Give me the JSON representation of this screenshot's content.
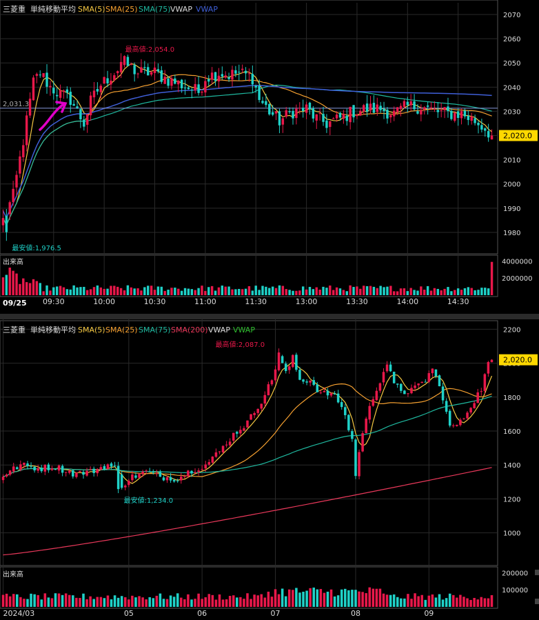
{
  "colors": {
    "up": "#e8184a",
    "down": "#1fd1c8",
    "sma5": "#f5c842",
    "sma25": "#f5a030",
    "sma75": "#1fb9a0",
    "sma200": "#e8385a",
    "vwap_intraday": "#3f5fd8",
    "vwap_daily": "#30c030",
    "grid": "#2a2a2a",
    "axis": "#888888",
    "text": "#dddddd",
    "price_tag": "#ffd800"
  },
  "chart_data": [
    {
      "type": "candlestick",
      "name": "intraday",
      "legend": {
        "symbol": "三菱重",
        "mode": "単純移動平均",
        "sma5": "SMA(5)",
        "sma25": "SMA(25)",
        "sma75": "SMA(75)",
        "vwap": "VWAP",
        "vwap2": "VWAP"
      },
      "x_ticks": [
        {
          "i": 15,
          "label": "09:30"
        },
        {
          "i": 30,
          "label": "10:00"
        },
        {
          "i": 45,
          "label": "10:30"
        },
        {
          "i": 60,
          "label": "11:00"
        },
        {
          "i": 75,
          "label": "11:30"
        },
        {
          "i": 90,
          "label": "13:00"
        },
        {
          "i": 105,
          "label": "13:30"
        },
        {
          "i": 120,
          "label": "14:00"
        },
        {
          "i": 135,
          "label": "14:30"
        }
      ],
      "date_label": "09/25",
      "y_ticks": [
        1980,
        1990,
        2000,
        2010,
        2020,
        2030,
        2040,
        2050,
        2060,
        2070
      ],
      "ylim": [
        1974,
        2072
      ],
      "n_bars": 146,
      "last_price": "2,020.0",
      "last_value": 2020,
      "reference_line": 2031.3,
      "reference_label": "2,031.3",
      "high_label": "最高値:2,054.0",
      "high": {
        "i": 35,
        "value": 2054
      },
      "low_label": "最安値:1,976.5",
      "low": {
        "i": 1,
        "value": 1976.5
      },
      "anchor_prices": [
        [
          0,
          1985
        ],
        [
          3,
          1995
        ],
        [
          6,
          2018
        ],
        [
          9,
          2042
        ],
        [
          11,
          2046
        ],
        [
          14,
          2040
        ],
        [
          17,
          2037
        ],
        [
          20,
          2035
        ],
        [
          22,
          2030
        ],
        [
          24,
          2025
        ],
        [
          26,
          2034
        ],
        [
          29,
          2041
        ],
        [
          33,
          2046
        ],
        [
          36,
          2050
        ],
        [
          40,
          2046
        ],
        [
          45,
          2046
        ],
        [
          49,
          2043
        ],
        [
          53,
          2041
        ],
        [
          58,
          2038
        ],
        [
          60,
          2044
        ],
        [
          64,
          2046
        ],
        [
          67,
          2045
        ],
        [
          70,
          2046
        ],
        [
          74,
          2044
        ],
        [
          76,
          2035
        ],
        [
          79,
          2030
        ],
        [
          82,
          2026
        ],
        [
          86,
          2030
        ],
        [
          90,
          2031
        ],
        [
          93,
          2027
        ],
        [
          96,
          2025
        ],
        [
          100,
          2027
        ],
        [
          104,
          2030
        ],
        [
          108,
          2031
        ],
        [
          112,
          2031
        ],
        [
          116,
          2029
        ],
        [
          120,
          2032
        ],
        [
          124,
          2032
        ],
        [
          128,
          2030
        ],
        [
          132,
          2029
        ],
        [
          136,
          2029
        ],
        [
          140,
          2026
        ],
        [
          143,
          2023
        ],
        [
          145,
          2020
        ]
      ],
      "volume": {
        "label": "出来高",
        "ticks": [
          {
            "v": 2000000,
            "label": "2000000"
          },
          {
            "v": 4000000,
            "label": "4000000"
          }
        ],
        "max": 4200000
      }
    },
    {
      "type": "candlestick",
      "name": "daily",
      "legend": {
        "symbol": "三菱重",
        "mode": "単純移動平均",
        "sma5": "SMA(5)",
        "sma25": "SMA(25)",
        "sma75": "SMA(75)",
        "sma200": "SMA(200)",
        "vwap": "VWAP",
        "vwap2": "VWAP"
      },
      "x_ticks": [
        {
          "i": 0,
          "label": "2024/03"
        },
        {
          "i": 36,
          "label": "05"
        },
        {
          "i": 57,
          "label": "06"
        },
        {
          "i": 78,
          "label": "07"
        },
        {
          "i": 101,
          "label": "08"
        },
        {
          "i": 122,
          "label": "09"
        }
      ],
      "y_ticks": [
        1000,
        1200,
        1400,
        1600,
        1800,
        2000,
        2200
      ],
      "ylim": [
        840,
        2230
      ],
      "n_bars": 141,
      "last_price": "2,020.0",
      "last_value": 2020,
      "high_label": "最高値:2,087.0",
      "high": {
        "i": 79,
        "value": 2087
      },
      "low_label": "最安値:1,234.0",
      "low": {
        "i": 33,
        "value": 1234
      },
      "anchor_prices": [
        [
          0,
          1340
        ],
        [
          5,
          1400
        ],
        [
          10,
          1380
        ],
        [
          15,
          1390
        ],
        [
          20,
          1350
        ],
        [
          25,
          1360
        ],
        [
          30,
          1400
        ],
        [
          32,
          1380
        ],
        [
          34,
          1280
        ],
        [
          37,
          1330
        ],
        [
          41,
          1360
        ],
        [
          45,
          1330
        ],
        [
          50,
          1320
        ],
        [
          54,
          1370
        ],
        [
          58,
          1400
        ],
        [
          62,
          1480
        ],
        [
          66,
          1580
        ],
        [
          70,
          1650
        ],
        [
          74,
          1780
        ],
        [
          77,
          1900
        ],
        [
          79,
          2050
        ],
        [
          81,
          1940
        ],
        [
          83,
          2030
        ],
        [
          85,
          1900
        ],
        [
          88,
          1900
        ],
        [
          91,
          1820
        ],
        [
          94,
          1820
        ],
        [
          97,
          1750
        ],
        [
          100,
          1550
        ],
        [
          101,
          1340
        ],
        [
          103,
          1600
        ],
        [
          106,
          1800
        ],
        [
          108,
          1900
        ],
        [
          110,
          2000
        ],
        [
          112,
          1870
        ],
        [
          115,
          1830
        ],
        [
          118,
          1850
        ],
        [
          121,
          1900
        ],
        [
          123,
          1970
        ],
        [
          126,
          1800
        ],
        [
          128,
          1620
        ],
        [
          131,
          1650
        ],
        [
          134,
          1750
        ],
        [
          137,
          1850
        ],
        [
          139,
          2000
        ],
        [
          140,
          2020
        ]
      ],
      "sma200_range": [
        870,
        1385
      ],
      "volume": {
        "label": "出来高",
        "ticks": [
          {
            "v": 100000,
            "label": "100000"
          },
          {
            "v": 200000,
            "label": "200000"
          }
        ],
        "max": 210000
      }
    }
  ]
}
